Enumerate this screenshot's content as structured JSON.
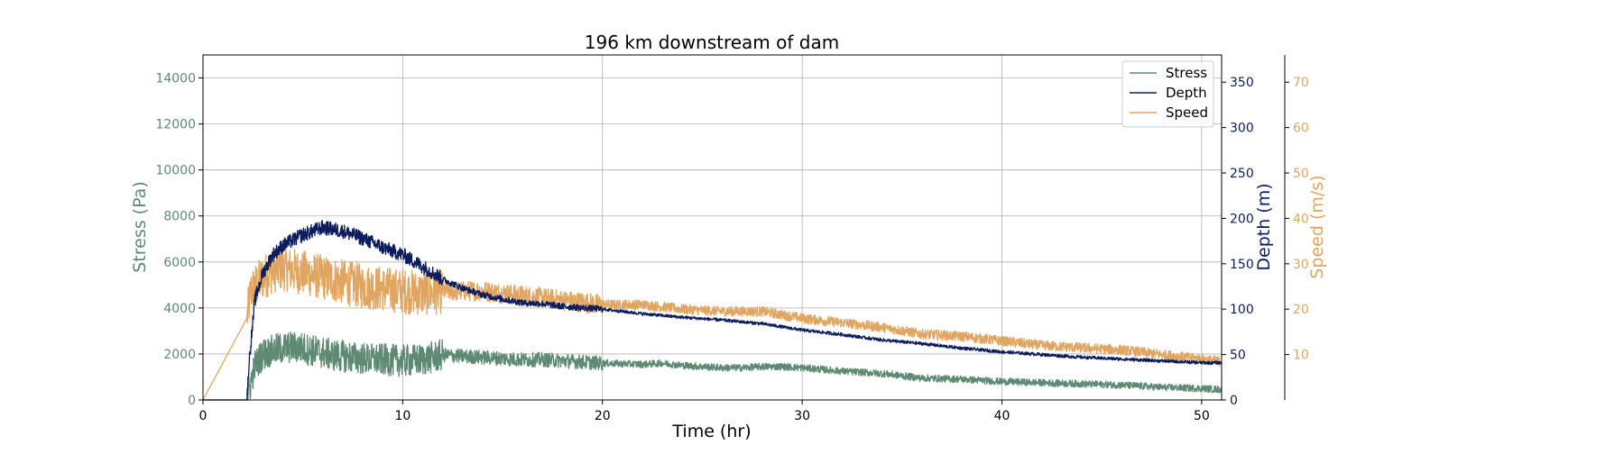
{
  "chart_data": {
    "type": "line",
    "title": "196 km downstream of dam",
    "xlabel": "Time (hr)",
    "xlim": [
      0,
      51
    ],
    "xticks": [
      0,
      10,
      20,
      30,
      40,
      50
    ],
    "grid": true,
    "legend_position": "top-right",
    "axes": {
      "stress": {
        "label": "Stress (Pa)",
        "ylim": [
          0,
          15000
        ],
        "ticks": [
          0,
          2000,
          4000,
          6000,
          8000,
          10000,
          12000,
          14000
        ],
        "color": "#5e8a73"
      },
      "depth": {
        "label": "Depth (m)",
        "ylim": [
          0,
          380
        ],
        "ticks": [
          0,
          50,
          100,
          150,
          200,
          250,
          300,
          350
        ],
        "color": "#0b1d5c"
      },
      "speed": {
        "label": "Speed (m/s)",
        "ylim": [
          0,
          76
        ],
        "ticks": [
          10,
          20,
          30,
          40,
          50,
          60,
          70
        ],
        "color": "#e0a560"
      }
    },
    "series": [
      {
        "name": "Stress",
        "axis": "stress",
        "color": "#5e8a73",
        "noise_amplitude": 700,
        "x": [
          0,
          2.2,
          2.3,
          2.6,
          3,
          3.5,
          4,
          4.5,
          5,
          5.5,
          6,
          6.5,
          7,
          7.5,
          8,
          9,
          10,
          11,
          12,
          13,
          14,
          15,
          16,
          17,
          18,
          19,
          20,
          22,
          23,
          24,
          25,
          26,
          27,
          28,
          29,
          30,
          32,
          34,
          35,
          36,
          38,
          40,
          42,
          44,
          46,
          48,
          50,
          51
        ],
        "y": [
          0,
          0,
          400,
          1500,
          2000,
          2150,
          2250,
          2300,
          2250,
          2150,
          2050,
          1950,
          1900,
          1850,
          1800,
          1750,
          1700,
          1750,
          1950,
          1900,
          1850,
          1800,
          1750,
          1750,
          1700,
          1650,
          1600,
          1550,
          1600,
          1500,
          1450,
          1400,
          1400,
          1450,
          1450,
          1400,
          1250,
          1150,
          1050,
          950,
          900,
          800,
          750,
          700,
          650,
          550,
          500,
          450
        ]
      },
      {
        "name": "Depth",
        "axis": "depth",
        "color": "#0b1d5c",
        "noise_amplitude": 8,
        "x": [
          0,
          2.2,
          2.3,
          2.6,
          3,
          3.5,
          4,
          5,
          6,
          7,
          8,
          9,
          10,
          11,
          12,
          13,
          14,
          15,
          16,
          17,
          18,
          20,
          22,
          24,
          26,
          28,
          30,
          32,
          34,
          36,
          38,
          40,
          42,
          44,
          46,
          48,
          50,
          51
        ],
        "y": [
          0,
          0,
          40,
          110,
          140,
          160,
          170,
          182,
          190,
          186,
          178,
          168,
          160,
          147,
          133,
          123,
          116,
          111,
          107,
          106,
          103,
          100,
          95,
          91,
          88,
          84,
          77,
          72,
          66,
          62,
          57,
          53,
          50,
          47,
          45,
          43,
          41,
          41
        ]
      },
      {
        "name": "Speed",
        "axis": "speed",
        "color": "#e0a560",
        "noise_amplitude": 5,
        "x": [
          0,
          2.1,
          2.2,
          2.4,
          3,
          3.5,
          4,
          5,
          6,
          7,
          8,
          9,
          10,
          11,
          12,
          13,
          14,
          15,
          16,
          17,
          18,
          19,
          20,
          22,
          24,
          26,
          28,
          30,
          32,
          34,
          36,
          38,
          40,
          42,
          44,
          46,
          48,
          50,
          51
        ],
        "y": [
          0,
          0,
          18,
          24,
          27,
          28.5,
          29,
          28,
          27,
          26,
          25,
          24.5,
          24,
          23.5,
          24,
          24,
          24,
          23.5,
          23,
          22.5,
          22,
          21.5,
          21,
          21,
          20,
          19.5,
          19.5,
          18,
          17,
          16,
          14.5,
          14,
          13,
          12,
          11.5,
          11,
          10,
          9,
          8.5
        ]
      }
    ]
  }
}
